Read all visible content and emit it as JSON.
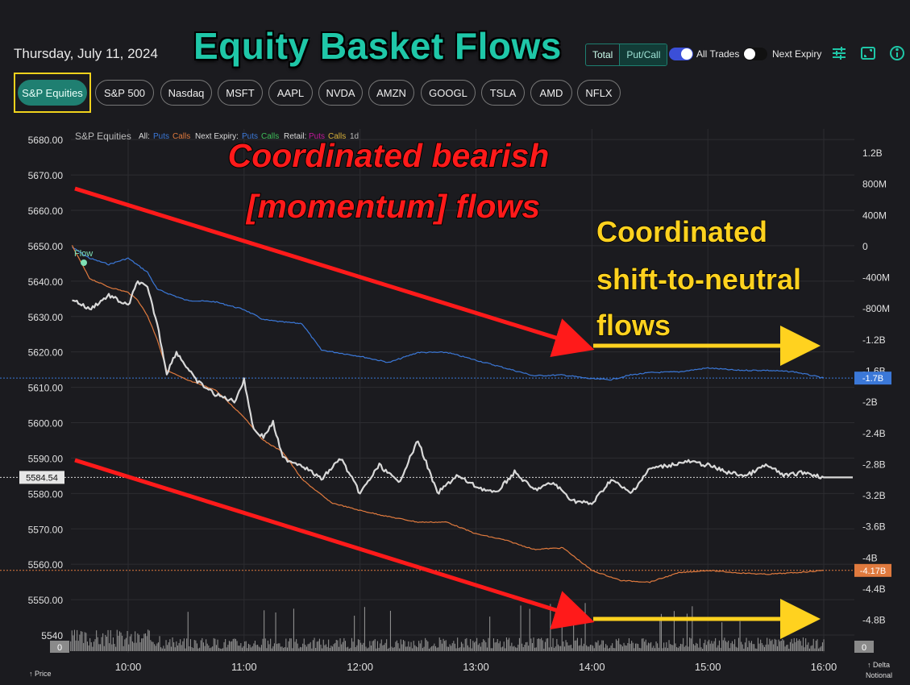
{
  "header": {
    "date": "Thursday, July 11, 2024",
    "title": "Equity Basket Flows",
    "toggle_total": "Total",
    "toggle_putcall": "Put/Call",
    "all_trades_label": "All Trades",
    "next_expiry_label": "Next Expiry",
    "icons": [
      "sliders-icon",
      "expand-icon",
      "info-icon"
    ]
  },
  "tickers": [
    "S&P Equities",
    "S&P 500",
    "Nasdaq",
    "MSFT",
    "AAPL",
    "NVDA",
    "AMZN",
    "GOOGL",
    "TSLA",
    "AMD",
    "NFLX"
  ],
  "colors": {
    "accent": "#1f7f71",
    "puts": "#3b78d8",
    "calls": "#e07a3e",
    "price": "#d9d9d9",
    "annotation_red": "#ff1a1a",
    "annotation_yellow": "#ffd21f"
  },
  "chart_data": {
    "type": "line",
    "title": "S&P Equities",
    "legend": {
      "all_label": "All:",
      "puts": "Puts",
      "calls": "Calls",
      "next_expiry_label": "Next Expiry:",
      "next_puts": "Puts",
      "next_calls": "Calls",
      "retail_label": "Retail:",
      "retail_puts": "Puts",
      "retail_calls": "Calls",
      "period": "1d",
      "placement": "top-left"
    },
    "flow_marker_label": "Flow",
    "xlabel_left": "↑ Price",
    "xlabel_right": [
      "↑ Delta",
      "Notional"
    ],
    "x_ticks": [
      "10:00",
      "11:00",
      "12:00",
      "13:00",
      "14:00",
      "15:00",
      "16:00"
    ],
    "x_range": [
      "09:30",
      "16:00"
    ],
    "left_axis": {
      "ticks": [
        "5680.00",
        "5670.00",
        "5660.00",
        "5650.00",
        "5640.00",
        "5630.00",
        "5620.00",
        "5610.00",
        "5600.00",
        "5590.00",
        "5580.00",
        "5570.00",
        "5560.00",
        "5550.00",
        "5540"
      ],
      "range": [
        5540,
        5683
      ],
      "current": "5584.54"
    },
    "right_axis": {
      "ticks": [
        "1.2B",
        "800M",
        "400M",
        "0",
        "-400M",
        "-800M",
        "-1.2B",
        "-1.6B",
        "-2B",
        "-2.4B",
        "-2.8B",
        "-3.2B",
        "-3.6B",
        "-4B",
        "-4.4B",
        "-4.8B"
      ],
      "range": [
        -5.0,
        1.5
      ],
      "puts_last": "-1.7B",
      "calls_last": "-4.17B"
    },
    "volume_left_label": "0",
    "volume_right_label": "0",
    "grid": true,
    "series": [
      {
        "name": "Puts",
        "axis": "right",
        "x": [
          "09:31",
          "09:40",
          "09:50",
          "10:00",
          "10:10",
          "10:15",
          "10:30",
          "10:45",
          "11:00",
          "11:10",
          "11:20",
          "11:30",
          "11:40",
          "12:00",
          "12:15",
          "12:30",
          "12:45",
          "13:00",
          "13:15",
          "13:30",
          "13:45",
          "14:00",
          "14:10",
          "14:20",
          "14:30",
          "14:45",
          "15:00",
          "15:15",
          "15:30",
          "15:45",
          "16:00"
        ],
        "y": [
          -0.02,
          -0.16,
          -0.24,
          -0.16,
          -0.34,
          -0.56,
          -0.7,
          -0.72,
          -0.82,
          -0.95,
          -0.98,
          -1.0,
          -1.34,
          -1.42,
          -1.5,
          -1.37,
          -1.37,
          -1.47,
          -1.57,
          -1.67,
          -1.66,
          -1.71,
          -1.72,
          -1.66,
          -1.63,
          -1.62,
          -1.57,
          -1.6,
          -1.6,
          -1.62,
          -1.7
        ]
      },
      {
        "name": "Calls",
        "axis": "right",
        "x": [
          "09:31",
          "09:40",
          "09:50",
          "10:00",
          "10:05",
          "10:10",
          "10:15",
          "10:20",
          "10:30",
          "10:45",
          "11:00",
          "11:10",
          "11:20",
          "11:30",
          "11:45",
          "12:00",
          "12:15",
          "12:30",
          "12:45",
          "13:00",
          "13:15",
          "13:30",
          "13:45",
          "14:00",
          "14:15",
          "14:30",
          "14:45",
          "15:00",
          "15:15",
          "15:30",
          "15:45",
          "16:00"
        ],
        "y": [
          0.0,
          -0.42,
          -0.53,
          -0.6,
          -0.7,
          -0.9,
          -1.2,
          -1.6,
          -1.72,
          -1.85,
          -2.2,
          -2.5,
          -2.65,
          -3.0,
          -3.3,
          -3.4,
          -3.48,
          -3.55,
          -3.55,
          -3.7,
          -3.78,
          -3.9,
          -3.88,
          -4.17,
          -4.3,
          -4.32,
          -4.2,
          -4.17,
          -4.2,
          -4.22,
          -4.2,
          -4.17
        ]
      },
      {
        "name": "Price",
        "axis": "left",
        "x": [
          "09:31",
          "09:40",
          "09:50",
          "10:00",
          "10:05",
          "10:10",
          "10:15",
          "10:20",
          "10:25",
          "10:35",
          "10:45",
          "10:55",
          "11:00",
          "11:05",
          "11:10",
          "11:15",
          "11:20",
          "11:30",
          "11:40",
          "11:50",
          "12:00",
          "12:10",
          "12:20",
          "12:30",
          "12:40",
          "12:50",
          "13:00",
          "13:10",
          "13:20",
          "13:30",
          "13:40",
          "13:50",
          "14:00",
          "14:10",
          "14:20",
          "14:30",
          "14:40",
          "14:50",
          "15:00",
          "15:10",
          "15:20",
          "15:30",
          "15:40",
          "15:50",
          "16:00"
        ],
        "y": [
          5635,
          5632,
          5636,
          5633,
          5640,
          5638,
          5628,
          5614,
          5620,
          5612,
          5608,
          5606,
          5612,
          5598,
          5596,
          5600,
          5590,
          5588,
          5584,
          5590,
          5580,
          5588,
          5583,
          5595,
          5580,
          5585,
          5582,
          5580,
          5586,
          5581,
          5583,
          5578,
          5577,
          5584,
          5580,
          5587,
          5588,
          5589,
          5588,
          5586,
          5585,
          5588,
          5585,
          5586,
          5584.54
        ]
      }
    ],
    "annotations": [
      {
        "text": [
          "Coordinated bearish",
          "[momentum] flows"
        ],
        "color": "red"
      },
      {
        "text": [
          "Coordinated",
          "shift-to-neutral",
          "flows"
        ],
        "color": "yellow"
      }
    ]
  }
}
